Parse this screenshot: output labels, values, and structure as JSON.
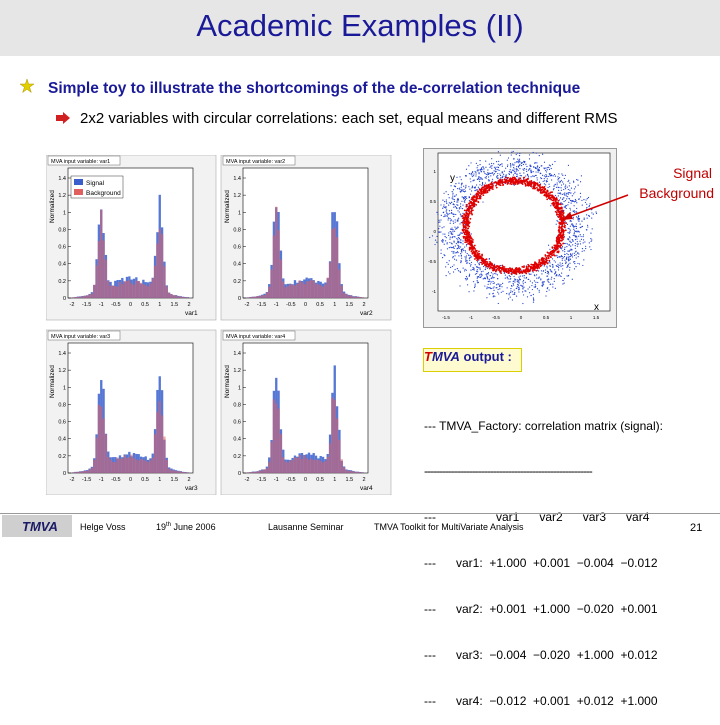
{
  "title": "Academic Examples (II)",
  "bullet1": "Simple toy to illustrate the shortcomings of the de-correlation technique",
  "bullet2": "2x2 variables with circular correlations: each set, equal means and different  RMS",
  "histograms": [
    {
      "title": "MVA input variable: var1",
      "xvar": "var1"
    },
    {
      "title": "MVA input variable: var2",
      "xvar": "var2"
    },
    {
      "title": "MVA input variable: var3",
      "xvar": "var3"
    },
    {
      "title": "MVA input variable: var4",
      "xvar": "var4"
    }
  ],
  "legend": {
    "signal": "Signal",
    "background": "Background"
  },
  "ylabel": "Normalized",
  "yticks": [
    "1.4",
    "1.2",
    "1",
    "0.8",
    "0.6",
    "0.4",
    "0.2",
    "0"
  ],
  "xticks": [
    "-2",
    "-1.5",
    "-1",
    "-0.5",
    "0",
    "0.5",
    "1",
    "1.5",
    "2"
  ],
  "scatter": {
    "ylabel": "y",
    "xlabel": "x",
    "yticks": [
      "1",
      "0.5",
      "0",
      "-0.5",
      "-1"
    ],
    "xticks": [
      "-1.5",
      "-1",
      "-0.5",
      "0",
      "0.5",
      "1",
      "1.5"
    ],
    "annotation_signal": "Signal",
    "annotation_background": "Background"
  },
  "tmva_output": {
    "brand_t": "T",
    "brand_rest": "MVA",
    "label": " output :"
  },
  "matrix_lines": [
    "--- TMVA_Factory: correlation matrix (signal):",
    "--------------------------------------------------------",
    "---                  var1      var2      var3      var4",
    "---      var1:  +1.000  +0.001  −0.004  −0.012",
    "---      var2:  +0.001  +1.000  −0.020  +0.001",
    "---      var3:  −0.004  −0.020  +1.000  +0.012",
    "---      var4:  −0.012  +0.001  +0.012  +1.000"
  ],
  "footer": {
    "logo": "TMVA",
    "author": "Helge Voss",
    "date_day": "19",
    "date_sup": "th",
    "date_rest": " June 2006",
    "venue": "Lausanne Seminar",
    "subject": "TMVA Toolkit for MultiVariate Analysis",
    "page": "21"
  },
  "colors": {
    "title": "#1a1a99",
    "signal": "#3a5fcd",
    "background": "#e06060",
    "red": "#e00000"
  }
}
